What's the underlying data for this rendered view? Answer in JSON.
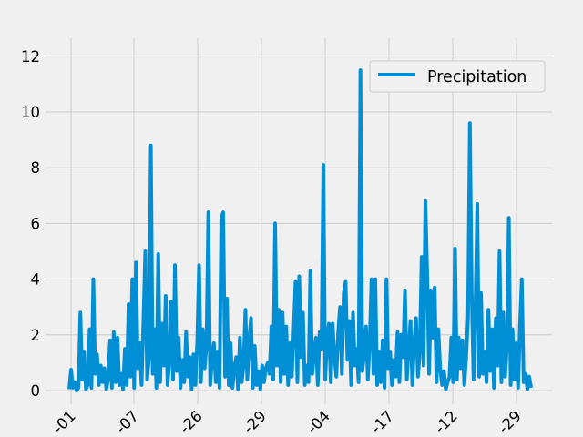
{
  "chart_data": {
    "type": "line",
    "title": "",
    "xlabel": "",
    "ylabel": "",
    "ylim": [
      0,
      12
    ],
    "yticks": [
      0,
      2,
      4,
      6,
      8,
      10,
      12
    ],
    "xticks": [
      "-01",
      "-07",
      "-26",
      "-29",
      "-04",
      "-17",
      "-12",
      "-29"
    ],
    "grid": true,
    "legend": "upper-right",
    "series": [
      {
        "name": "Precipitation",
        "color": "#008fd5",
        "values": [
          0.05,
          0.75,
          0.1,
          0.3,
          0.0,
          0.1,
          2.8,
          0.4,
          1.4,
          0.05,
          0.2,
          2.2,
          0.1,
          4.0,
          0.6,
          1.3,
          0.2,
          0.9,
          0.3,
          0.8,
          0.05,
          0.4,
          1.8,
          0.1,
          2.1,
          0.3,
          1.9,
          0.2,
          0.6,
          0.05,
          1.5,
          0.2,
          3.1,
          0.5,
          4.0,
          0.1,
          4.6,
          0.8,
          1.7,
          0.2,
          2.5,
          5.0,
          0.4,
          1.2,
          8.8,
          0.6,
          2.2,
          0.1,
          4.9,
          0.3,
          2.4,
          0.9,
          3.4,
          0.2,
          1.1,
          3.2,
          0.4,
          4.5,
          0.7,
          1.9,
          0.1,
          1.1,
          0.3,
          2.1,
          0.5,
          1.2,
          0.05,
          1.3,
          0.2,
          1.7,
          4.5,
          0.3,
          2.2,
          0.8,
          1.6,
          6.4,
          0.2,
          1.1,
          1.7,
          0.3,
          1.4,
          0.1,
          6.2,
          6.4,
          0.5,
          3.3,
          0.2,
          1.7,
          0.1,
          0.8,
          1.2,
          0.05,
          1.9,
          0.3,
          0.9,
          2.9,
          0.4,
          1.8,
          2.6,
          0.1,
          1.6,
          0.2,
          0.7,
          0.05,
          0.9,
          0.3,
          0.8,
          1.0,
          0.6,
          2.3,
          0.4,
          6.0,
          0.9,
          2.9,
          0.3,
          2.8,
          0.6,
          2.3,
          0.2,
          1.7,
          0.5,
          2.1,
          3.9,
          0.3,
          4.1,
          1.2,
          2.8,
          0.2,
          0.9,
          0.3,
          4.3,
          0.6,
          1.3,
          1.9,
          0.2,
          2.1,
          1.5,
          8.1,
          0.4,
          1.8,
          2.4,
          0.3,
          2.4,
          1.2,
          0.5,
          2.1,
          3.0,
          0.6,
          3.5,
          3.9,
          1.1,
          2.5,
          0.2,
          2.8,
          0.9,
          1.5,
          0.3,
          11.5,
          0.7,
          1.3,
          2.3,
          0.4,
          1.8,
          4.0,
          0.6,
          4.0,
          0.2,
          1.4,
          0.3,
          1.8,
          0.1,
          4.0,
          0.8,
          1.4,
          0.2,
          1.1,
          0.5,
          2.1,
          0.3,
          2.0,
          1.2,
          3.6,
          0.4,
          1.5,
          2.5,
          0.2,
          1.7,
          2.6,
          0.5,
          1.4,
          4.8,
          0.9,
          6.8,
          4.2,
          0.6,
          3.6,
          1.9,
          3.7,
          0.3,
          2.2,
          0.8,
          0.2,
          0.7,
          0.05,
          0.3,
          0.5,
          1.9,
          0.3,
          5.1,
          0.4,
          1.9,
          0.8,
          1.8,
          0.2,
          1.2,
          2.6,
          9.6,
          3.5,
          0.4,
          2.9,
          6.7,
          0.5,
          3.5,
          0.6,
          1.4,
          0.3,
          2.9,
          0.7,
          2.2,
          0.1,
          2.6,
          0.9,
          5.0,
          0.3,
          2.8,
          0.5,
          1.6,
          6.2,
          0.2,
          2.2,
          0.4,
          1.7,
          0.1,
          2.3,
          4.0,
          0.3,
          0.6,
          0.05,
          0.5,
          0.1
        ]
      }
    ]
  }
}
